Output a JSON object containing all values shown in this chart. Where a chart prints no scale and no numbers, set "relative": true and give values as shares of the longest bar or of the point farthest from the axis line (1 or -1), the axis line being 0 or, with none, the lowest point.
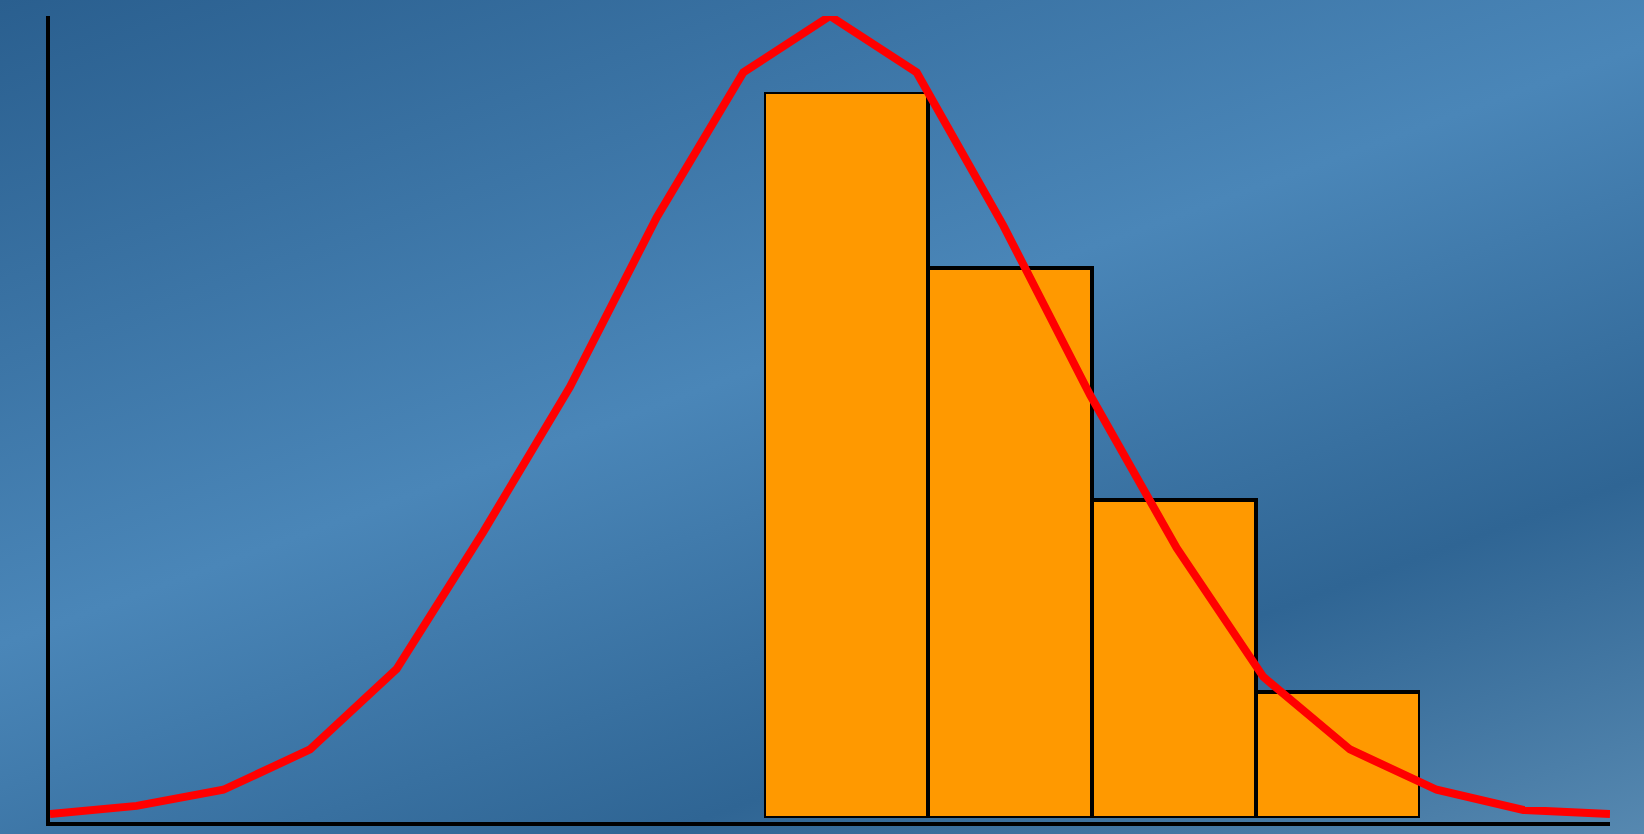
{
  "chart_data": [
    {
      "type": "bar",
      "relative": true,
      "categories": [
        null,
        null,
        null,
        null
      ],
      "values": [
        1,
        0.757,
        0.439,
        0.174
      ],
      "color": "#ff9900"
    },
    {
      "type": "line",
      "relative": true,
      "categories": [
        null,
        null,
        null,
        null,
        null,
        null,
        null,
        null,
        null,
        null,
        null,
        null,
        null,
        null,
        null,
        null,
        null,
        null,
        null
      ],
      "values": [
        0.01,
        0.02,
        0.04,
        0.09,
        0.19,
        0.36,
        0.54,
        0.75,
        0.93,
        1,
        0.93,
        0.74,
        0.53,
        0.34,
        0.18,
        0.09,
        0.04,
        0.015,
        0.01
      ],
      "color": "#ff0000"
    }
  ]
}
